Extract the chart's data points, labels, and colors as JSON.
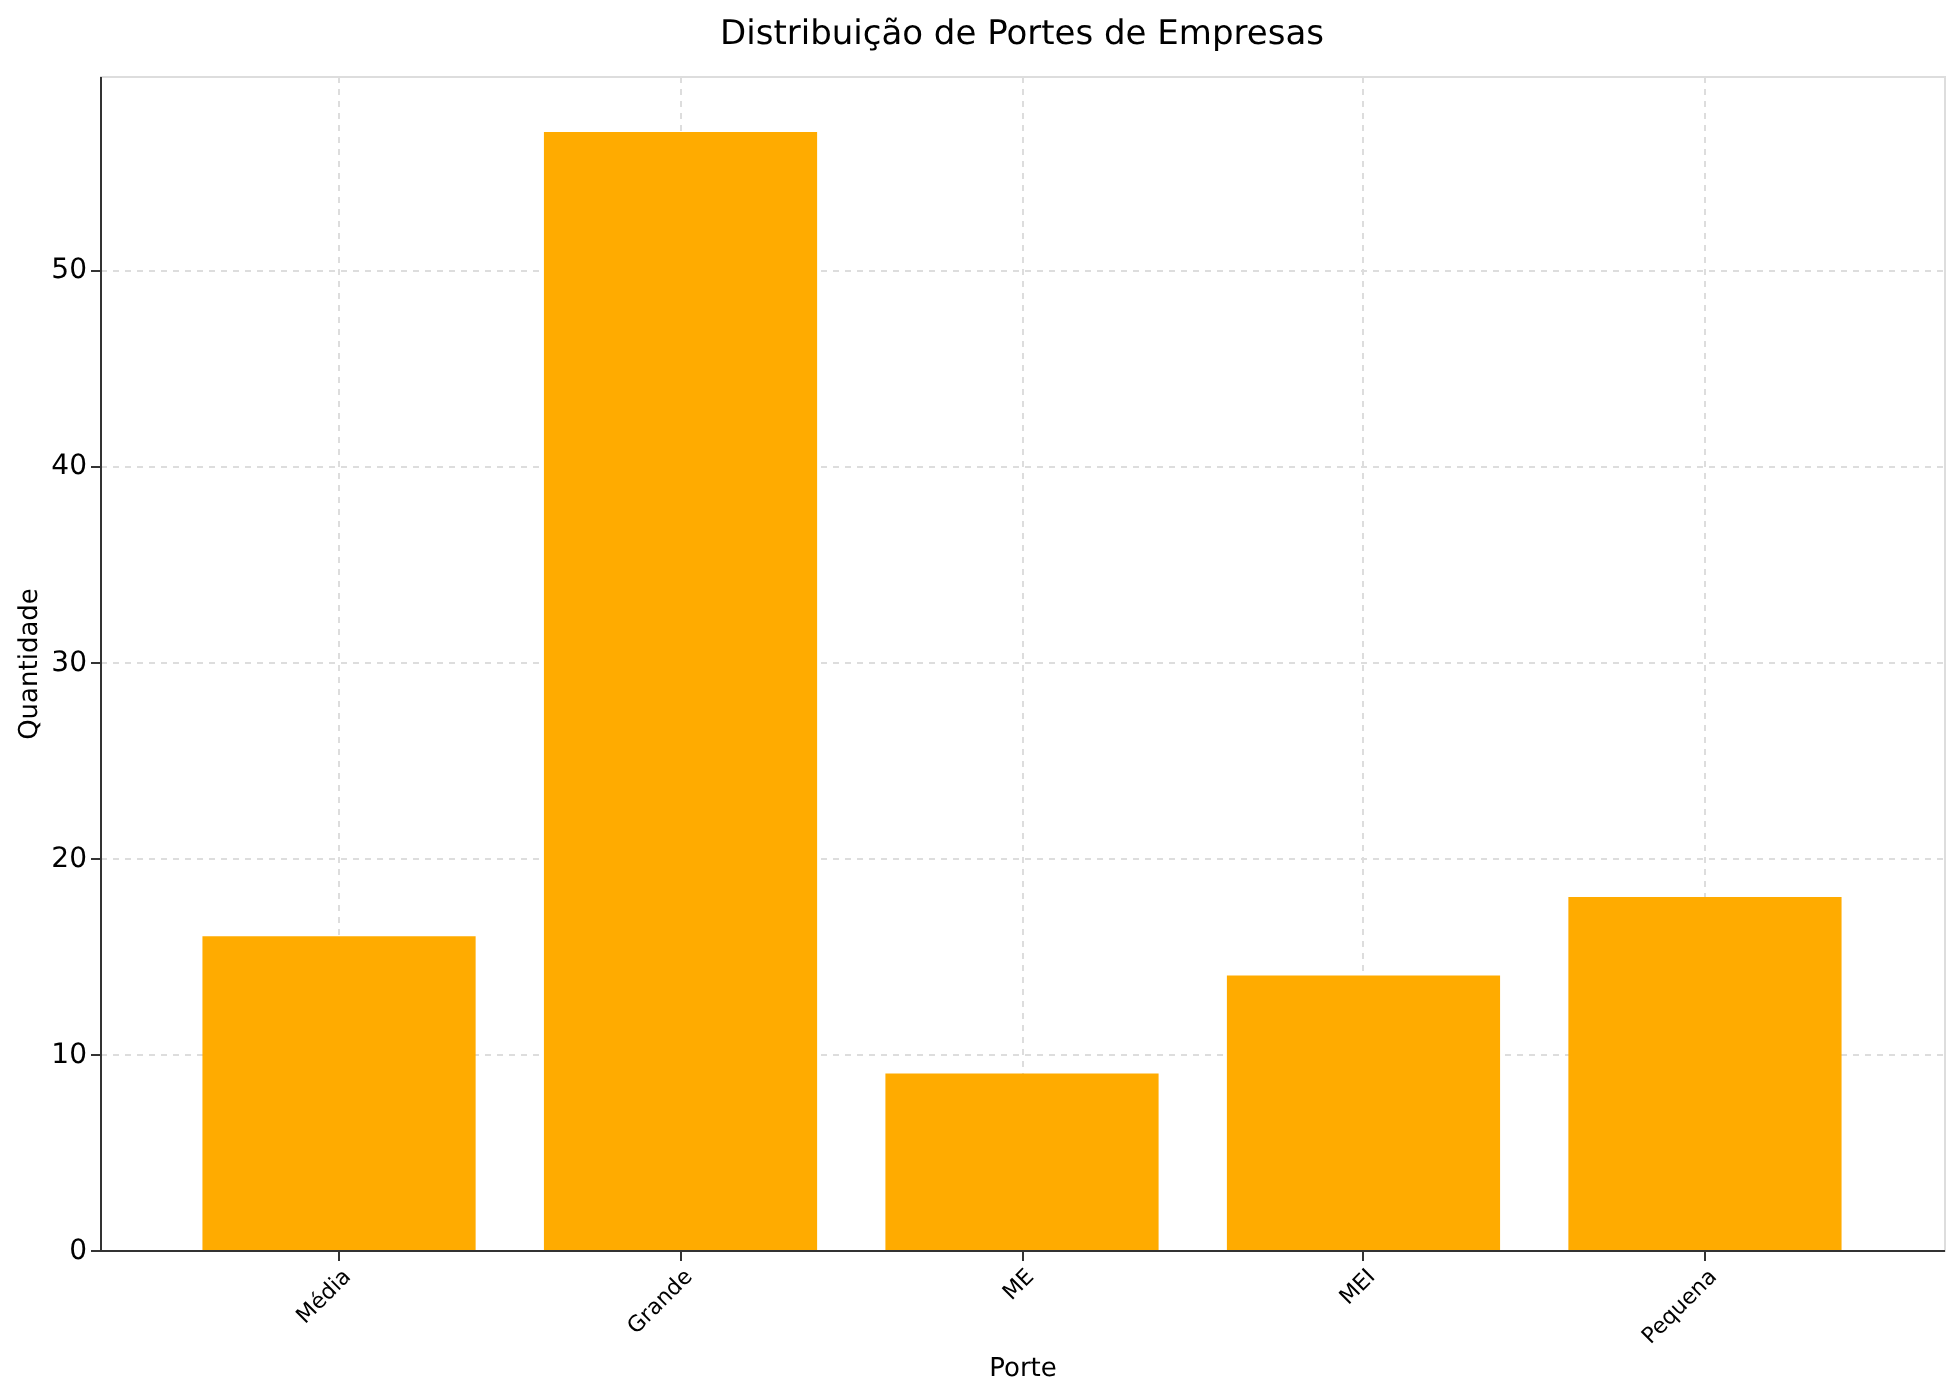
{
  "chart_data": {
    "type": "bar",
    "title": "Distribuição de Portes de Empresas",
    "xlabel": "Porte",
    "ylabel": "Quantidade",
    "categories": [
      "Média",
      "Grande",
      "ME",
      "MEI",
      "Pequena"
    ],
    "values": [
      16,
      57,
      9,
      14,
      18
    ],
    "color": "#ffab00",
    "ylim": [
      0,
      59.85
    ],
    "yticks": [
      0,
      10,
      20,
      30,
      40,
      50
    ],
    "grid": true
  }
}
